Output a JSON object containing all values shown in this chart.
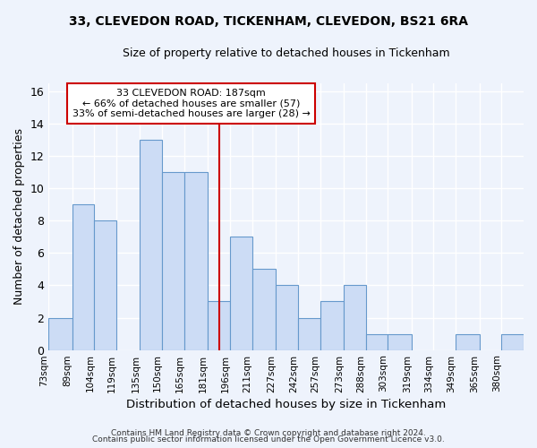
{
  "title1": "33, CLEVEDON ROAD, TICKENHAM, CLEVEDON, BS21 6RA",
  "title2": "Size of property relative to detached houses in Tickenham",
  "xlabel": "Distribution of detached houses by size in Tickenham",
  "ylabel": "Number of detached properties",
  "bar_labels": [
    "73sqm",
    "89sqm",
    "104sqm",
    "119sqm",
    "135sqm",
    "150sqm",
    "165sqm",
    "181sqm",
    "196sqm",
    "211sqm",
    "227sqm",
    "242sqm",
    "257sqm",
    "273sqm",
    "288sqm",
    "303sqm",
    "319sqm",
    "334sqm",
    "349sqm",
    "365sqm",
    "380sqm"
  ],
  "bar_values": [
    2,
    9,
    8,
    0,
    13,
    11,
    11,
    3,
    7,
    5,
    4,
    2,
    3,
    4,
    1,
    1,
    0,
    0,
    1,
    0,
    1
  ],
  "bar_color": "#ccdcf5",
  "bar_edge_color": "#6699cc",
  "annotation_line_color": "#cc0000",
  "annotation_box_text": "33 CLEVEDON ROAD: 187sqm\n← 66% of detached houses are smaller (57)\n33% of semi-detached houses are larger (28) →",
  "annotation_box_color": "#cc0000",
  "bg_color": "#eef3fc",
  "grid_color": "#ffffff",
  "footer1": "Contains HM Land Registry data © Crown copyright and database right 2024.",
  "footer2": "Contains public sector information licensed under the Open Government Licence v3.0.",
  "yticks": [
    0,
    2,
    4,
    6,
    8,
    10,
    12,
    14,
    16
  ],
  "ylim": [
    0,
    16.5
  ],
  "bin_edges": [
    73,
    89,
    104,
    119,
    135,
    150,
    165,
    181,
    196,
    211,
    227,
    242,
    257,
    273,
    288,
    303,
    319,
    334,
    349,
    365,
    380,
    395
  ],
  "vline_x_index": 8
}
